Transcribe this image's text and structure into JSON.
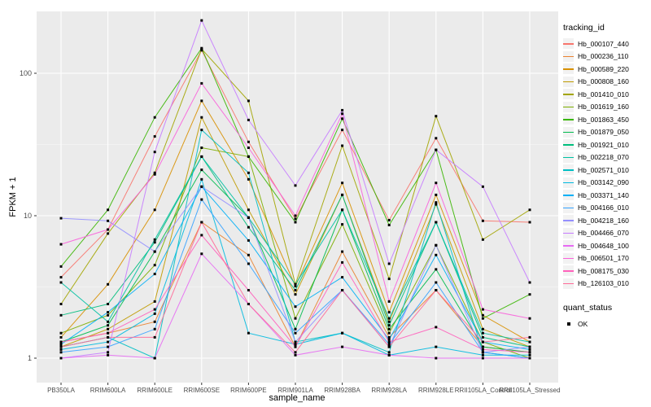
{
  "chart": {
    "panel_bg": "#EBEBEB",
    "grid_major_color": "#FFFFFF",
    "grid_minor_color": "#F7F7F7",
    "tick_mark_color": "#333333",
    "tick_label_color": "#4D4D4D",
    "marker_color": "#000000",
    "xlabel": "sample_name",
    "ylabel": "FPKM + 1"
  },
  "legend": {
    "tracking_title": "tracking_id",
    "quant_title": "quant_status",
    "quant_items": [
      {
        "label": "OK",
        "marker": "black-square"
      }
    ]
  },
  "chart_data": {
    "type": "line",
    "title": "",
    "xlabel": "sample_name",
    "ylabel": "FPKM + 1",
    "y_scale": "log10",
    "yticks": [
      1,
      10,
      100
    ],
    "y_minor_ticks": [
      3.162,
      31.62
    ],
    "ylim": [
      1,
      272
    ],
    "grid": true,
    "legend_position": "right",
    "point_shape": "filled-square",
    "x_categories": [
      "PB350LA",
      "RRIM600LA",
      "RRIM600LE",
      "RRIM600SE",
      "RRIM600PE",
      "RRIM901LA",
      "RRIM928BA",
      "RRIM928LA",
      "RRIM928LE",
      "RRII105LA_Control",
      "RRII105LA_Stressed"
    ],
    "series": [
      {
        "name": "Hb_000107_440",
        "color": "#F8766D",
        "values": [
          3.7,
          8.0,
          36,
          145,
          33,
          9.5,
          40,
          9.3,
          35,
          9.2,
          9.0
        ]
      },
      {
        "name": "Hb_000236_110",
        "color": "#EA8331",
        "values": [
          1.3,
          1.5,
          1.8,
          9.0,
          5.3,
          1.2,
          5.6,
          1.4,
          3.0,
          1.2,
          1.1
        ]
      },
      {
        "name": "Hb_000589_220",
        "color": "#D89000",
        "values": [
          1.4,
          3.3,
          11,
          64,
          18,
          3.2,
          17,
          2.1,
          14,
          2.0,
          1.3
        ]
      },
      {
        "name": "Hb_000808_160",
        "color": "#C09B00",
        "values": [
          1.2,
          1.6,
          2.5,
          49,
          11,
          2.8,
          14,
          1.8,
          12,
          1.6,
          1.2
        ]
      },
      {
        "name": "Hb_001410_010",
        "color": "#A3A500",
        "values": [
          2.4,
          7.5,
          20,
          148,
          64,
          3.3,
          31,
          3.6,
          50,
          6.8,
          11
        ]
      },
      {
        "name": "Hb_001619_160",
        "color": "#7CAE00",
        "values": [
          1.5,
          2.0,
          4.5,
          30,
          26,
          1.9,
          8.7,
          1.5,
          6.2,
          1.3,
          1.0
        ]
      },
      {
        "name": "Hb_001863_450",
        "color": "#39B600",
        "values": [
          4.4,
          11,
          49,
          150,
          26,
          9.0,
          48,
          8.6,
          29,
          1.9,
          2.8
        ]
      },
      {
        "name": "Hb_001879_050",
        "color": "#00BB4E",
        "values": [
          1.3,
          1.7,
          5.6,
          21,
          9.7,
          1.6,
          11,
          1.6,
          4.2,
          1.2,
          1.1
        ]
      },
      {
        "name": "Hb_001921_010",
        "color": "#00BF7D",
        "values": [
          2.0,
          2.4,
          6.5,
          26,
          8.3,
          3.0,
          14,
          1.7,
          9.0,
          1.4,
          1.2
        ]
      },
      {
        "name": "Hb_002218_070",
        "color": "#00C1A3",
        "values": [
          3.4,
          1.8,
          6.8,
          26,
          9.7,
          3.3,
          11,
          1.9,
          9.0,
          1.5,
          1.3
        ]
      },
      {
        "name": "Hb_002571_010",
        "color": "#00BFC4",
        "values": [
          1.2,
          1.4,
          1.0,
          40,
          20,
          1.3,
          1.5,
          1.1,
          12.4,
          1.1,
          1.0
        ]
      },
      {
        "name": "Hb_003142_090",
        "color": "#00BAE0",
        "values": [
          1.15,
          1.3,
          2.05,
          18,
          1.5,
          1.25,
          1.5,
          1.05,
          1.2,
          1.05,
          1.05
        ]
      },
      {
        "name": "Hb_003371_140",
        "color": "#00B0F6",
        "values": [
          1.25,
          2.1,
          3.9,
          16,
          6.7,
          2.3,
          3.7,
          1.35,
          5.3,
          1.3,
          1.15
        ]
      },
      {
        "name": "Hb_004166_010",
        "color": "#35A2FF",
        "values": [
          1.1,
          1.2,
          1.6,
          13,
          4.6,
          1.5,
          3.0,
          1.25,
          3.4,
          1.1,
          1.0
        ]
      },
      {
        "name": "Hb_004218_160",
        "color": "#9590FF",
        "values": [
          9.6,
          9.2,
          5.6,
          16,
          9.7,
          1.3,
          3.0,
          1.2,
          6.2,
          1.1,
          1.2
        ]
      },
      {
        "name": "Hb_004466_070",
        "color": "#C77CFF",
        "values": [
          1.0,
          1.1,
          28,
          235,
          47,
          16.3,
          55,
          4.6,
          29,
          16,
          3.4
        ]
      },
      {
        "name": "Hb_004648_100",
        "color": "#E76BF3",
        "values": [
          1.0,
          1.05,
          1.0,
          5.4,
          2.4,
          1.05,
          1.2,
          1.05,
          1.0,
          1.0,
          1.0
        ]
      },
      {
        "name": "Hb_006501_170",
        "color": "#FA62DB",
        "values": [
          6.3,
          8.0,
          19.5,
          85,
          30,
          10,
          52,
          2.5,
          17,
          2.2,
          1.9
        ]
      },
      {
        "name": "Hb_008175_030",
        "color": "#FF62BC",
        "values": [
          1.3,
          1.5,
          2.2,
          7.3,
          3.0,
          1.2,
          4.7,
          1.3,
          1.65,
          1.15,
          1.1
        ]
      },
      {
        "name": "Hb_126103_010",
        "color": "#FF6A98",
        "values": [
          1.2,
          1.4,
          1.4,
          9.0,
          2.4,
          1.1,
          3.0,
          1.2,
          3.0,
          1.3,
          1.4
        ]
      }
    ]
  }
}
